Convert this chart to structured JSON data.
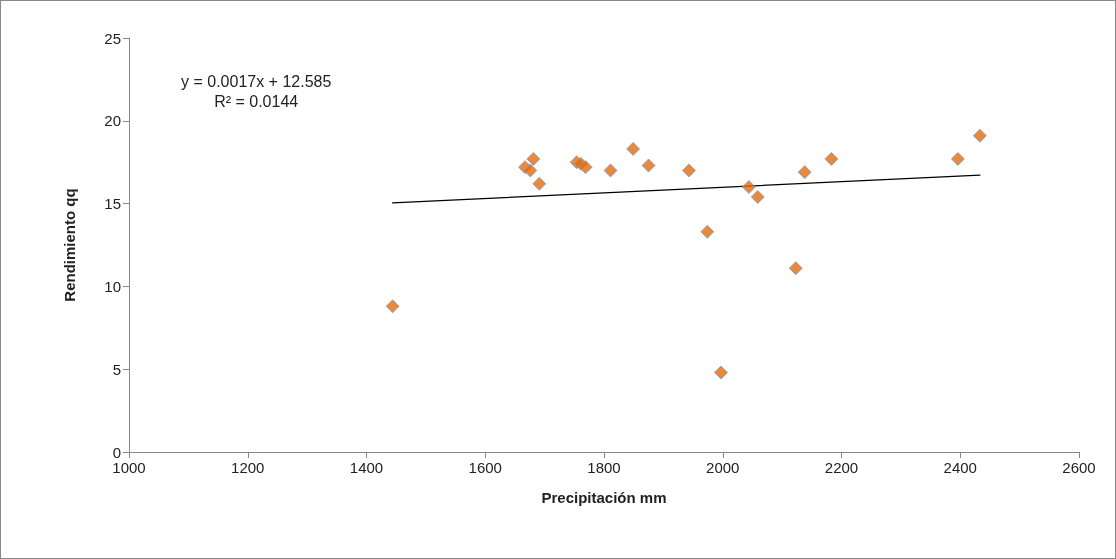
{
  "chart_data": {
    "type": "scatter",
    "xlabel": "Precipitación mm",
    "ylabel": "Rendimiento qq",
    "xlim": [
      1000,
      2600
    ],
    "xticks": [
      1000,
      1200,
      1400,
      1600,
      1800,
      2000,
      2200,
      2400,
      2600
    ],
    "ylim": [
      0,
      25
    ],
    "yticks": [
      0,
      5,
      10,
      15,
      20,
      25
    ],
    "grid": false,
    "marker": "diamond",
    "annotations": [
      "y = 0.0017x + 12.585",
      "R² = 0.0144"
    ],
    "series": [
      {
        "color": "#e36c0a",
        "x": [
          1444,
          1667,
          1676,
          1681,
          1691,
          1754,
          1761,
          1769,
          1811,
          1849,
          1875,
          1943,
          1974,
          1997,
          2044,
          2059,
          2123,
          2138,
          2183,
          2396,
          2433
        ],
        "values": [
          8.8,
          17.2,
          17.0,
          17.7,
          16.2,
          17.5,
          17.4,
          17.2,
          17.0,
          18.3,
          17.3,
          17.0,
          13.3,
          4.8,
          16.0,
          15.4,
          11.1,
          16.9,
          17.7,
          17.7,
          19.1
        ]
      },
      {
        "type": "line",
        "color": "#000000",
        "marker": "none",
        "x": [
          1444,
          2433
        ],
        "values": [
          15.04,
          16.72
        ]
      }
    ]
  }
}
